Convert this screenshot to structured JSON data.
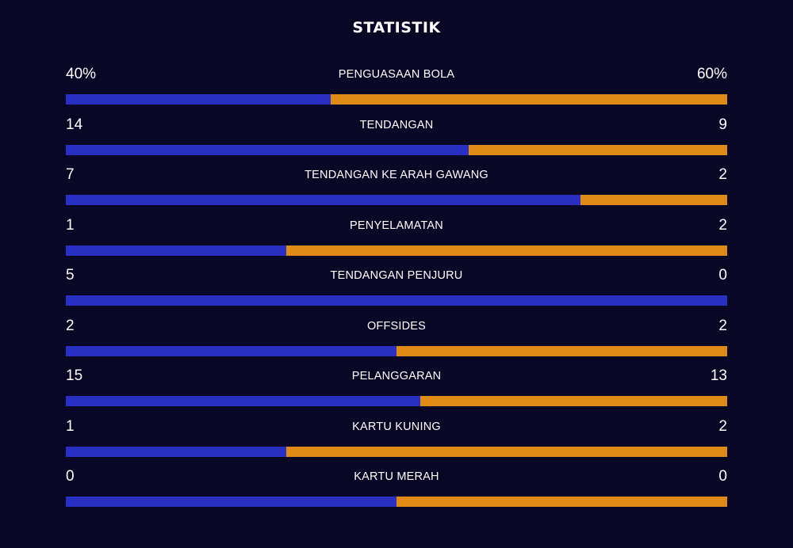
{
  "title": "STATISTIK",
  "colors": {
    "background": "#080726",
    "home": "#2a2fc4",
    "away": "#e08a17",
    "text": "#ffffff"
  },
  "stats": [
    {
      "label": "PENGUASAAN BOLA",
      "home": "40%",
      "away": "60%",
      "home_share": 0.4
    },
    {
      "label": "TENDANGAN",
      "home": "14",
      "away": "9",
      "home_share": 0.6087
    },
    {
      "label": "TENDANGAN KE ARAH GAWANG",
      "home": "7",
      "away": "2",
      "home_share": 0.7778
    },
    {
      "label": "PENYELAMATAN",
      "home": "1",
      "away": "2",
      "home_share": 0.3333
    },
    {
      "label": "TENDANGAN PENJURU",
      "home": "5",
      "away": "0",
      "home_share": 1.0
    },
    {
      "label": "OFFSIDES",
      "home": "2",
      "away": "2",
      "home_share": 0.5
    },
    {
      "label": "PELANGGARAN",
      "home": "15",
      "away": "13",
      "home_share": 0.5357
    },
    {
      "label": "KARTU KUNING",
      "home": "1",
      "away": "2",
      "home_share": 0.3333
    },
    {
      "label": "KARTU MERAH",
      "home": "0",
      "away": "0",
      "home_share": 0.5
    }
  ]
}
